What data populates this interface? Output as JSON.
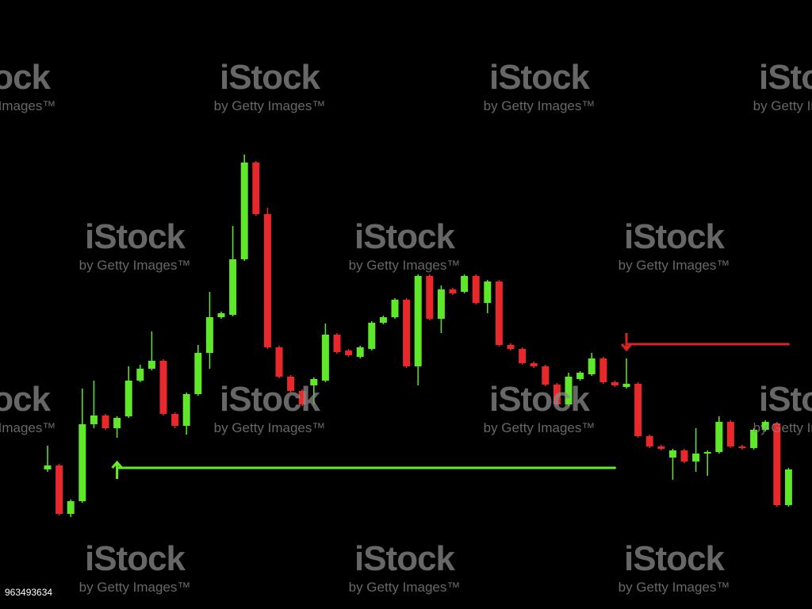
{
  "chart_data": {
    "type": "candlestick",
    "up_color": "#5fe82a",
    "down_color": "#e8282a",
    "ylim": [
      0,
      550
    ],
    "open": [
      108,
      113,
      52,
      68,
      165,
      176,
      160,
      175,
      220,
      235,
      245,
      178,
      163,
      203,
      255,
      300,
      303,
      373,
      495,
      430,
      262,
      225,
      207,
      214,
      220,
      278,
      258,
      250,
      260,
      293,
      300,
      322,
      238,
      352,
      298,
      335,
      332,
      352,
      318,
      345,
      265,
      260,
      242,
      238,
      215,
      190,
      222,
      228,
      248,
      218,
      212,
      216,
      150,
      137,
      123,
      132,
      118,
      128,
      130,
      168,
      137,
      135,
      158,
      166,
      63
    ],
    "high": [
      138,
      115,
      70,
      210,
      220,
      178,
      175,
      238,
      240,
      282,
      247,
      180,
      205,
      265,
      332,
      307,
      415,
      505,
      497,
      438,
      264,
      227,
      209,
      224,
      292,
      280,
      260,
      264,
      295,
      302,
      324,
      324,
      354,
      354,
      340,
      337,
      354,
      354,
      347,
      347,
      267,
      262,
      244,
      240,
      217,
      230,
      232,
      255,
      250,
      220,
      248,
      218,
      152,
      139,
      134,
      134,
      160,
      132,
      175,
      170,
      139,
      160,
      170,
      168,
      110
    ],
    "low": [
      105,
      50,
      48,
      66,
      160,
      158,
      148,
      173,
      218,
      233,
      176,
      160,
      152,
      201,
      235,
      298,
      301,
      371,
      428,
      260,
      223,
      205,
      188,
      190,
      218,
      254,
      250,
      248,
      258,
      291,
      298,
      236,
      214,
      296,
      280,
      328,
      330,
      316,
      305,
      263,
      258,
      240,
      236,
      213,
      188,
      188,
      220,
      226,
      216,
      212,
      210,
      148,
      135,
      132,
      95,
      116,
      105,
      100,
      128,
      135,
      133,
      133,
      156,
      61,
      61
    ],
    "close": [
      113,
      52,
      68,
      165,
      176,
      160,
      173,
      220,
      235,
      245,
      178,
      163,
      203,
      255,
      300,
      305,
      373,
      495,
      430,
      262,
      225,
      207,
      190,
      222,
      278,
      256,
      252,
      262,
      293,
      300,
      322,
      238,
      352,
      298,
      335,
      330,
      352,
      318,
      345,
      265,
      260,
      242,
      238,
      215,
      190,
      225,
      230,
      248,
      218,
      214,
      216,
      150,
      137,
      134,
      132,
      118,
      128,
      130,
      168,
      137,
      135,
      158,
      168,
      63,
      108
    ],
    "levels": [
      {
        "value": 110,
        "color": "#66ee22",
        "from": 6,
        "to": 49
      },
      {
        "value": 266,
        "color": "#dd2222",
        "from": 50,
        "to": 64
      }
    ]
  },
  "watermark": {
    "brand": "iStock",
    "credit": "by Getty Images™"
  },
  "image_id": "963493634"
}
